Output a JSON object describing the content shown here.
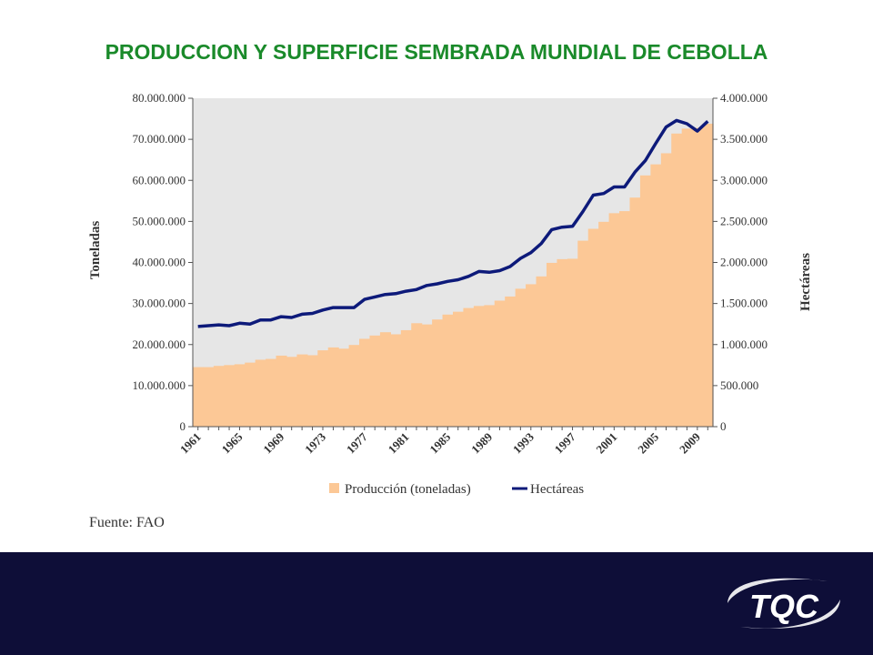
{
  "title": "PRODUCCION Y SUPERFICIE SEMBRADA MUNDIAL DE CEBOLLA",
  "source": "Fuente: FAO",
  "logo_text": "TQC",
  "colors": {
    "title": "#1a8a2a",
    "bars": "#fcc896",
    "line": "#0d1a7a",
    "plot_bg": "#e6e6e6",
    "footer": "#0e0e38"
  },
  "chart_data": {
    "type": "bar",
    "x": [
      1961,
      1962,
      1963,
      1964,
      1965,
      1966,
      1967,
      1968,
      1969,
      1970,
      1971,
      1972,
      1973,
      1974,
      1975,
      1976,
      1977,
      1978,
      1979,
      1980,
      1981,
      1982,
      1983,
      1984,
      1985,
      1986,
      1987,
      1988,
      1989,
      1990,
      1991,
      1992,
      1993,
      1994,
      1995,
      1996,
      1997,
      1998,
      1999,
      2000,
      2001,
      2002,
      2003,
      2004,
      2005,
      2006,
      2007,
      2008,
      2009,
      2010
    ],
    "x_tick_labels": [
      "1961",
      "1965",
      "1969",
      "1973",
      "1977",
      "1981",
      "1985",
      "1989",
      "1993",
      "1997",
      "2001",
      "2005",
      "2009"
    ],
    "x_tick_years": [
      1961,
      1965,
      1969,
      1973,
      1977,
      1981,
      1985,
      1989,
      1993,
      1997,
      2001,
      2005,
      2009
    ],
    "ylabel": "Toneladas",
    "y2label": "Hectáreas",
    "ylim": [
      0,
      80000000
    ],
    "y2lim": [
      0,
      4000000
    ],
    "yticks": [
      "0",
      "10.000.000",
      "20.000.000",
      "30.000.000",
      "40.000.000",
      "50.000.000",
      "60.000.000",
      "70.000.000",
      "80.000.000"
    ],
    "y2ticks": [
      "0",
      "500.000",
      "1.000.000",
      "1.500.000",
      "2.000.000",
      "2.500.000",
      "3.000.000",
      "3.500.000",
      "4.000.000"
    ],
    "grid": false,
    "legend_position": "bottom",
    "series": [
      {
        "name": "Producción (toneladas)",
        "type": "bar",
        "axis": "left",
        "values": [
          14500000,
          14500000,
          14800000,
          15000000,
          15200000,
          15600000,
          16300000,
          16500000,
          17300000,
          17000000,
          17600000,
          17400000,
          18600000,
          19300000,
          19000000,
          19900000,
          21400000,
          22200000,
          23000000,
          22500000,
          23500000,
          25200000,
          24900000,
          26100000,
          27300000,
          28000000,
          28900000,
          29400000,
          29600000,
          30700000,
          31700000,
          33600000,
          34700000,
          36600000,
          39900000,
          40800000,
          40900000,
          45300000,
          48200000,
          49900000,
          52000000,
          52500000,
          55800000,
          61200000,
          63900000,
          66600000,
          71400000,
          72600000,
          72800000,
          73800000
        ]
      },
      {
        "name": "Hectáreas",
        "type": "line",
        "axis": "right",
        "values": [
          1220000,
          1230000,
          1240000,
          1230000,
          1260000,
          1250000,
          1300000,
          1300000,
          1340000,
          1330000,
          1370000,
          1380000,
          1420000,
          1450000,
          1450000,
          1450000,
          1550000,
          1580000,
          1610000,
          1620000,
          1650000,
          1670000,
          1720000,
          1740000,
          1770000,
          1790000,
          1830000,
          1890000,
          1880000,
          1900000,
          1950000,
          2050000,
          2120000,
          2230000,
          2400000,
          2430000,
          2440000,
          2620000,
          2820000,
          2840000,
          2920000,
          2920000,
          3100000,
          3240000,
          3450000,
          3650000,
          3730000,
          3690000,
          3600000,
          3720000
        ]
      }
    ]
  }
}
